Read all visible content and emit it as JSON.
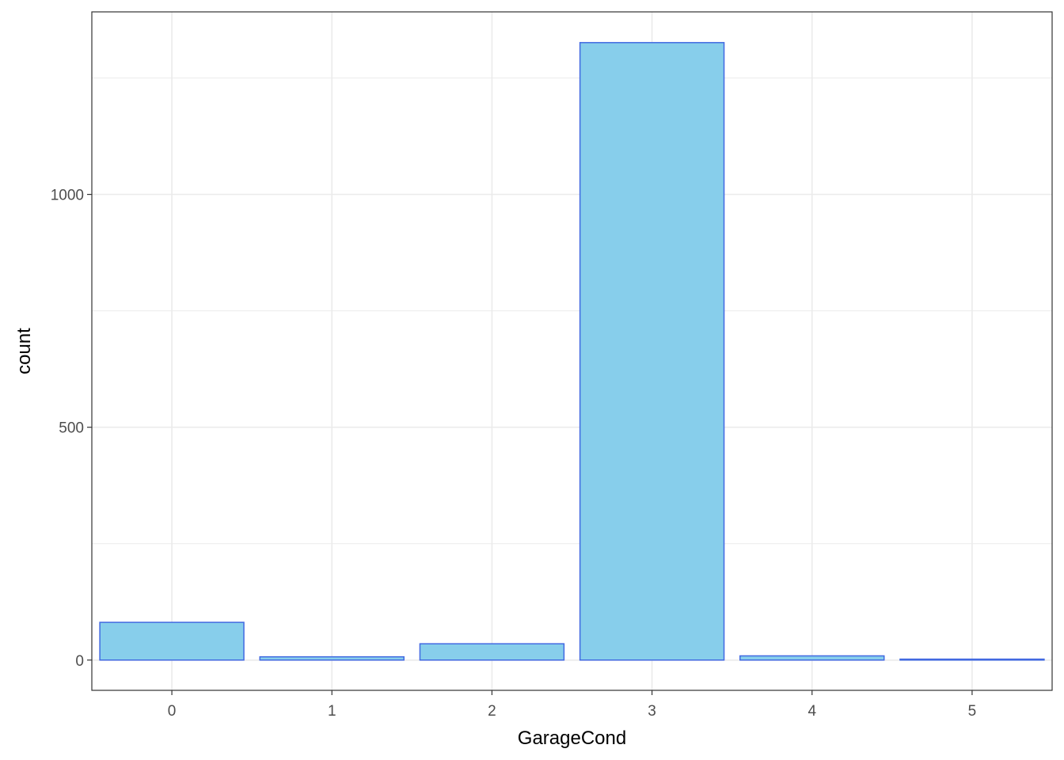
{
  "chart_data": {
    "type": "bar",
    "title": "",
    "xlabel": "GarageCond",
    "ylabel": "count",
    "categories": [
      "0",
      "1",
      "2",
      "3",
      "4",
      "5"
    ],
    "values": [
      81,
      7,
      35,
      1326,
      9,
      2
    ],
    "ylim": [
      -65,
      1392
    ],
    "yticks": [
      0,
      500,
      1000
    ],
    "ytick_labels": [
      "0",
      "500",
      "1000"
    ],
    "y_minor_ticks": [
      250,
      750,
      1250
    ],
    "grid": true,
    "legend": "none",
    "colors": {
      "bar_fill": "#87CEEB",
      "bar_outline": "#4169E1",
      "grid": "#ebebeb",
      "panel_border": "#333333",
      "tick_text": "#4d4d4d"
    }
  }
}
